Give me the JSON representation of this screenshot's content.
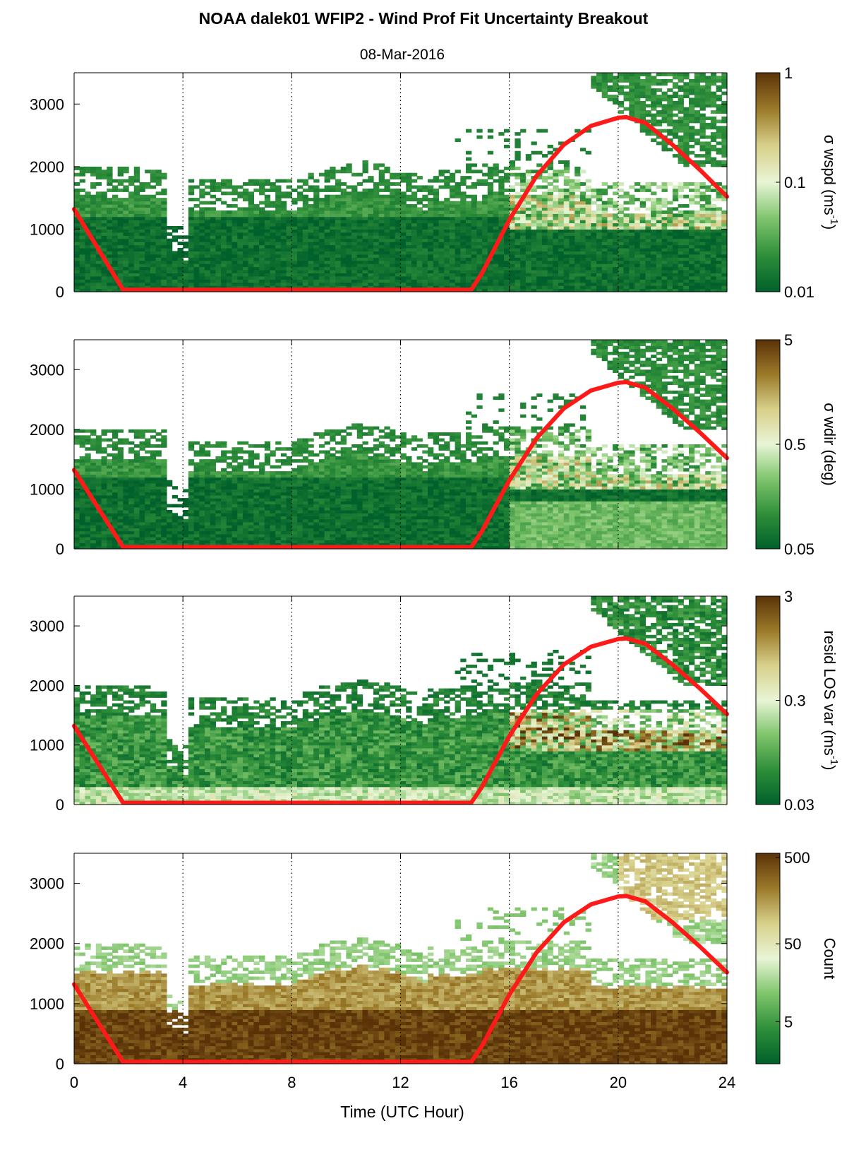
{
  "figure": {
    "title": "NOAA dalek01 WFIP2 - Wind Prof Fit Uncertainty Breakout",
    "subtitle": "08-Mar-2016",
    "xlabel": "Time (UTC Hour)"
  },
  "colors": {
    "cmap": [
      "#00602b",
      "#2f8f3a",
      "#7ec46b",
      "#e8f5d6",
      "#d8d08a",
      "#9b7a2a",
      "#5a3208"
    ],
    "sun_curve": "#ff1a1a",
    "grid": "#000000"
  },
  "chart_data": [
    {
      "type": "heatmap",
      "name": "sigma-wspd",
      "colorbar_label": "σ wspd (ms^-1)",
      "colorbar_ticks": [
        "0.01",
        "0.1",
        "1"
      ],
      "clim": [
        0.01,
        1
      ],
      "log_scale": true,
      "xlim": [
        0,
        24
      ],
      "ylim": [
        0,
        3500
      ],
      "xticks": [
        "0",
        "4",
        "8",
        "12",
        "16",
        "20",
        "24"
      ],
      "yticks": [
        "0",
        "1000",
        "2000",
        "3000"
      ],
      "grid_x": [
        4,
        8,
        12,
        16,
        20
      ],
      "sun_curve_x": [
        0,
        1.8,
        14.6,
        15,
        16,
        17,
        18,
        19,
        20,
        20.3,
        21,
        22,
        23,
        24
      ],
      "sun_curve_y": [
        1320,
        30,
        30,
        300,
        1150,
        1850,
        2350,
        2650,
        2780,
        2790,
        2700,
        2350,
        1950,
        1520
      ]
    },
    {
      "type": "heatmap",
      "name": "sigma-wdir",
      "colorbar_label": "σ wdir (deg)",
      "colorbar_ticks": [
        "0.05",
        "0.5",
        "5"
      ],
      "clim": [
        0.05,
        5
      ],
      "log_scale": true,
      "xlim": [
        0,
        24
      ],
      "ylim": [
        0,
        3500
      ],
      "xticks": [
        "0",
        "4",
        "8",
        "12",
        "16",
        "20",
        "24"
      ],
      "yticks": [
        "0",
        "1000",
        "2000",
        "3000"
      ],
      "grid_x": [
        4,
        8,
        12,
        16,
        20
      ],
      "sun_curve_x": [
        0,
        1.8,
        14.6,
        15,
        16,
        17,
        18,
        19,
        20,
        20.3,
        21,
        22,
        23,
        24
      ],
      "sun_curve_y": [
        1320,
        30,
        30,
        300,
        1150,
        1850,
        2350,
        2650,
        2780,
        2790,
        2700,
        2350,
        1950,
        1520
      ]
    },
    {
      "type": "heatmap",
      "name": "resid-los-var",
      "colorbar_label": "resid LOS var (ms^-1)^2",
      "colorbar_ticks": [
        "0.03",
        "0.3",
        "3"
      ],
      "clim": [
        0.03,
        3
      ],
      "log_scale": true,
      "xlim": [
        0,
        24
      ],
      "ylim": [
        0,
        3500
      ],
      "xticks": [
        "0",
        "4",
        "8",
        "12",
        "16",
        "20",
        "24"
      ],
      "yticks": [
        "0",
        "1000",
        "2000",
        "3000"
      ],
      "grid_x": [
        4,
        8,
        12,
        16,
        20
      ],
      "sun_curve_x": [
        0,
        1.8,
        14.6,
        15,
        16,
        17,
        18,
        19,
        20,
        20.3,
        21,
        22,
        23,
        24
      ],
      "sun_curve_y": [
        1320,
        30,
        30,
        300,
        1150,
        1850,
        2350,
        2650,
        2780,
        2790,
        2700,
        2350,
        1950,
        1520
      ]
    },
    {
      "type": "heatmap",
      "name": "count",
      "colorbar_label": "Count",
      "colorbar_ticks": [
        "5",
        "50",
        "500"
      ],
      "clim": [
        0.5,
        500
      ],
      "log_scale": true,
      "xlim": [
        0,
        24
      ],
      "ylim": [
        0,
        3500
      ],
      "xticks": [
        "0",
        "4",
        "8",
        "12",
        "16",
        "20",
        "24"
      ],
      "yticks": [
        "0",
        "1000",
        "2000",
        "3000"
      ],
      "grid_x": [
        4,
        8,
        12,
        16,
        20
      ],
      "sun_curve_x": [
        0,
        1.8,
        14.6,
        15,
        16,
        17,
        18,
        19,
        20,
        20.3,
        21,
        22,
        23,
        24
      ],
      "sun_curve_y": [
        1320,
        30,
        30,
        300,
        1150,
        1850,
        2350,
        2650,
        2780,
        2790,
        2700,
        2350,
        1950,
        1520
      ]
    }
  ]
}
